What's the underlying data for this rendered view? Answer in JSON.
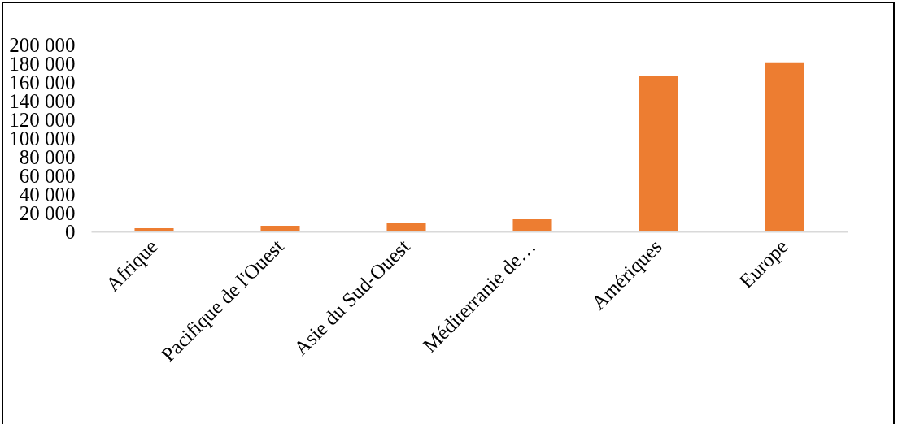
{
  "chart_data": {
    "type": "bar",
    "categories": [
      "Afrique",
      "Pacifique de l'Ouest",
      "Asie du Sud-Ouest",
      "Méditerranie de…",
      "Amériques",
      "Europe"
    ],
    "values": [
      3500,
      6000,
      8700,
      13000,
      167000,
      181000
    ],
    "color": "#ed7d31",
    "ylim": [
      0,
      200000
    ],
    "yticks": [
      {
        "value": 0,
        "label": "0"
      },
      {
        "value": 20000,
        "label": "20 000"
      },
      {
        "value": 40000,
        "label": "40 000"
      },
      {
        "value": 60000,
        "label": "60 000"
      },
      {
        "value": 80000,
        "label": "80 000"
      },
      {
        "value": 100000,
        "label": "100 000"
      },
      {
        "value": 120000,
        "label": "120 000"
      },
      {
        "value": 140000,
        "label": "140 000"
      },
      {
        "value": 160000,
        "label": "160 000"
      },
      {
        "value": 180000,
        "label": "180 000"
      },
      {
        "value": 200000,
        "label": "200 000"
      }
    ],
    "grid": false
  }
}
